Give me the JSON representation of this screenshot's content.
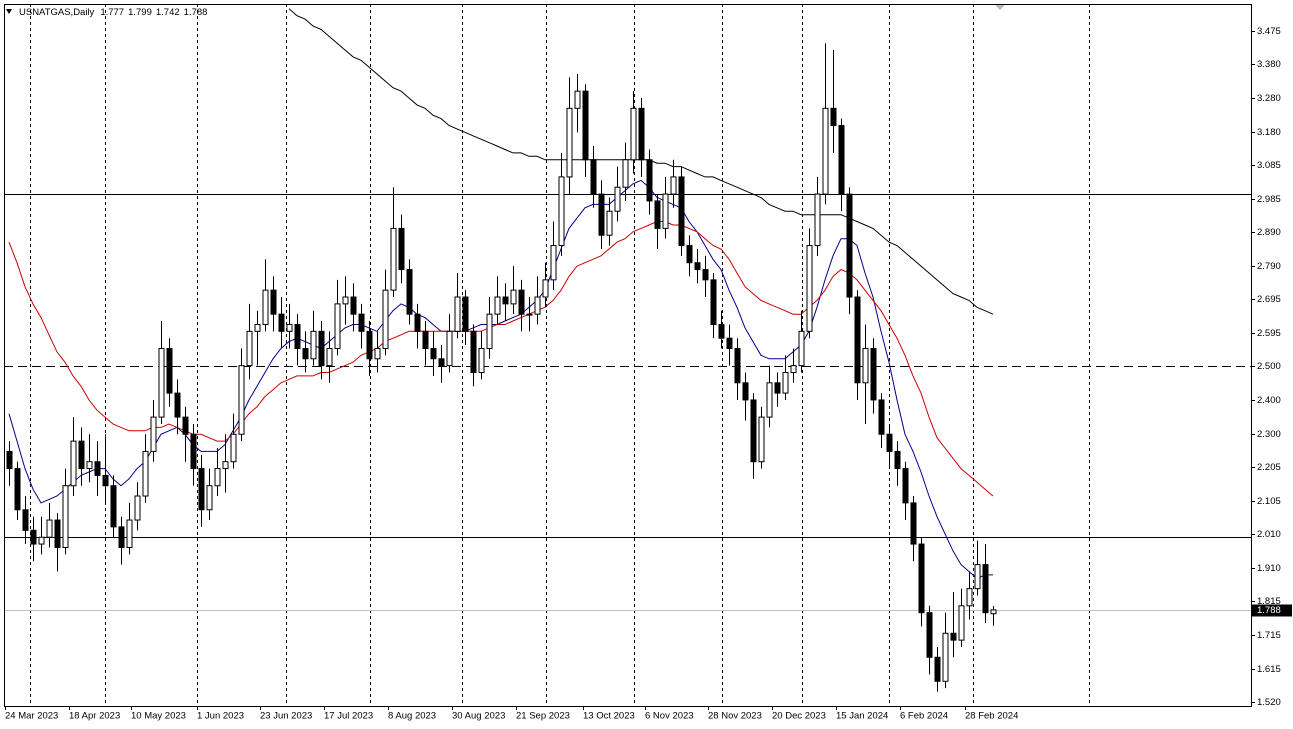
{
  "chart_data": {
    "type": "candlestick",
    "symbol": "USNATGAS,Daily",
    "x_labels": [
      "24 Mar 2023",
      "18 Apr 2023",
      "10 May 2023",
      "1 Jun 2023",
      "23 Jun 2023",
      "17 Jul 2023",
      "8 Aug 2023",
      "30 Aug 2023",
      "21 Sep 2023",
      "13 Oct 2023",
      "6 Nov 2023",
      "28 Nov 2023",
      "20 Dec 2023",
      "15 Jan 2024",
      "6 Feb 2024",
      "28 Feb 2024"
    ],
    "ylim": [
      1.508,
      3.554
    ],
    "yticks": [
      3.475,
      {
        "value": 3.38,
        "label": "3.380"
      },
      {
        "value": 3.28,
        "label": "3.280"
      },
      {
        "value": 3.18,
        "label": "3.180"
      },
      3.085,
      2.985,
      {
        "value": 2.89,
        "label": "2.890"
      },
      {
        "value": 2.79,
        "label": "2.790"
      },
      2.695,
      2.595,
      {
        "value": 2.5,
        "label": "2.500"
      },
      {
        "value": 2.4,
        "label": "2.400"
      },
      {
        "value": 2.3,
        "label": "2.300"
      },
      2.205,
      2.105,
      {
        "value": 2.01,
        "label": "2.010"
      },
      {
        "value": 1.91,
        "label": "1.910"
      },
      1.815,
      1.715,
      1.615,
      {
        "value": 1.52,
        "label": "1.520"
      }
    ],
    "up_color": "#ffffff",
    "down_color": "#000000",
    "hlines": [
      {
        "value": 3.0,
        "style": "solid"
      },
      {
        "value": 2.5,
        "style": "dashed"
      },
      {
        "value": 2.0,
        "style": "solid"
      }
    ],
    "ohlc": [
      [
        2.25,
        2.28,
        2.15,
        2.2
      ],
      [
        2.2,
        2.22,
        2.05,
        2.08
      ],
      [
        2.08,
        2.12,
        1.98,
        2.02
      ],
      [
        2.02,
        2.06,
        1.93,
        1.98
      ],
      [
        1.98,
        2.06,
        1.95,
        2.0
      ],
      [
        2.0,
        2.1,
        1.97,
        2.05
      ],
      [
        2.05,
        2.07,
        1.9,
        1.97
      ],
      [
        1.97,
        2.2,
        1.95,
        2.15
      ],
      [
        2.15,
        2.35,
        2.12,
        2.28
      ],
      [
        2.28,
        2.32,
        2.15,
        2.2
      ],
      [
        2.2,
        2.3,
        2.16,
        2.22
      ],
      [
        2.22,
        2.28,
        2.12,
        2.18
      ],
      [
        2.18,
        2.3,
        2.1,
        2.15
      ],
      [
        2.15,
        2.18,
        2.0,
        2.03
      ],
      [
        2.03,
        2.06,
        1.92,
        1.97
      ],
      [
        1.97,
        2.1,
        1.95,
        2.05
      ],
      [
        2.05,
        2.16,
        2.02,
        2.12
      ],
      [
        2.12,
        2.3,
        2.1,
        2.25
      ],
      [
        2.25,
        2.4,
        2.22,
        2.35
      ],
      [
        2.35,
        2.63,
        2.33,
        2.55
      ],
      [
        2.55,
        2.58,
        2.38,
        2.42
      ],
      [
        2.42,
        2.46,
        2.3,
        2.35
      ],
      [
        2.35,
        2.38,
        2.22,
        2.3
      ],
      [
        2.3,
        2.33,
        2.15,
        2.2
      ],
      [
        2.2,
        2.24,
        2.03,
        2.08
      ],
      [
        2.08,
        2.2,
        2.05,
        2.15
      ],
      [
        2.15,
        2.26,
        2.12,
        2.2
      ],
      [
        2.2,
        2.3,
        2.13,
        2.22
      ],
      [
        2.22,
        2.36,
        2.2,
        2.3
      ],
      [
        2.3,
        2.55,
        2.28,
        2.5
      ],
      [
        2.5,
        2.68,
        2.46,
        2.6
      ],
      [
        2.6,
        2.66,
        2.5,
        2.62
      ],
      [
        2.62,
        2.81,
        2.6,
        2.72
      ],
      [
        2.72,
        2.76,
        2.6,
        2.65
      ],
      [
        2.65,
        2.7,
        2.55,
        2.6
      ],
      [
        2.6,
        2.68,
        2.55,
        2.62
      ],
      [
        2.62,
        2.65,
        2.5,
        2.55
      ],
      [
        2.55,
        2.6,
        2.48,
        2.52
      ],
      [
        2.52,
        2.66,
        2.5,
        2.6
      ],
      [
        2.6,
        2.63,
        2.46,
        2.5
      ],
      [
        2.5,
        2.6,
        2.45,
        2.55
      ],
      [
        2.55,
        2.75,
        2.53,
        2.68
      ],
      [
        2.68,
        2.76,
        2.62,
        2.7
      ],
      [
        2.7,
        2.74,
        2.6,
        2.65
      ],
      [
        2.65,
        2.68,
        2.55,
        2.6
      ],
      [
        2.6,
        2.63,
        2.47,
        2.52
      ],
      [
        2.52,
        2.6,
        2.48,
        2.55
      ],
      [
        2.55,
        2.78,
        2.53,
        2.72
      ],
      [
        2.72,
        3.02,
        2.7,
        2.9
      ],
      [
        2.9,
        2.94,
        2.74,
        2.78
      ],
      [
        2.78,
        2.81,
        2.62,
        2.65
      ],
      [
        2.65,
        2.68,
        2.55,
        2.6
      ],
      [
        2.6,
        2.63,
        2.5,
        2.55
      ],
      [
        2.55,
        2.6,
        2.47,
        2.52
      ],
      [
        2.52,
        2.56,
        2.45,
        2.5
      ],
      [
        2.5,
        2.65,
        2.48,
        2.6
      ],
      [
        2.6,
        2.77,
        2.58,
        2.7
      ],
      [
        2.7,
        2.72,
        2.56,
        2.6
      ],
      [
        2.6,
        2.62,
        2.44,
        2.48
      ],
      [
        2.48,
        2.6,
        2.46,
        2.55
      ],
      [
        2.55,
        2.7,
        2.52,
        2.65
      ],
      [
        2.65,
        2.76,
        2.62,
        2.7
      ],
      [
        2.7,
        2.74,
        2.63,
        2.68
      ],
      [
        2.68,
        2.79,
        2.65,
        2.72
      ],
      [
        2.72,
        2.75,
        2.6,
        2.65
      ],
      [
        2.65,
        2.7,
        2.6,
        2.65
      ],
      [
        2.65,
        2.76,
        2.62,
        2.7
      ],
      [
        2.7,
        2.8,
        2.67,
        2.75
      ],
      [
        2.75,
        2.92,
        2.72,
        2.85
      ],
      [
        2.85,
        3.12,
        2.82,
        3.05
      ],
      [
        3.05,
        3.34,
        3.0,
        3.25
      ],
      [
        3.25,
        3.35,
        3.18,
        3.3
      ],
      [
        3.3,
        3.32,
        3.05,
        3.1
      ],
      [
        3.1,
        3.14,
        2.96,
        3.0
      ],
      [
        3.0,
        3.04,
        2.84,
        2.88
      ],
      [
        2.88,
        2.99,
        2.85,
        2.95
      ],
      [
        2.95,
        3.08,
        2.92,
        3.02
      ],
      [
        3.02,
        3.15,
        2.98,
        3.1
      ],
      [
        3.1,
        3.3,
        3.06,
        3.25
      ],
      [
        3.25,
        3.28,
        3.05,
        3.1
      ],
      [
        3.1,
        3.13,
        2.94,
        2.98
      ],
      [
        2.98,
        3.0,
        2.84,
        2.9
      ],
      [
        2.9,
        3.05,
        2.87,
        3.0
      ],
      [
        3.0,
        3.1,
        2.96,
        3.05
      ],
      [
        3.05,
        3.08,
        2.82,
        2.85
      ],
      [
        2.85,
        2.88,
        2.76,
        2.8
      ],
      [
        2.8,
        2.84,
        2.74,
        2.78
      ],
      [
        2.78,
        2.82,
        2.7,
        2.75
      ],
      [
        2.75,
        2.77,
        2.58,
        2.62
      ],
      [
        2.62,
        2.66,
        2.55,
        2.58
      ],
      [
        2.58,
        2.62,
        2.5,
        2.55
      ],
      [
        2.55,
        2.58,
        2.4,
        2.45
      ],
      [
        2.45,
        2.48,
        2.34,
        2.4
      ],
      [
        2.4,
        2.42,
        2.17,
        2.22
      ],
      [
        2.22,
        2.38,
        2.2,
        2.35
      ],
      [
        2.35,
        2.5,
        2.32,
        2.45
      ],
      [
        2.45,
        2.48,
        2.38,
        2.42
      ],
      [
        2.42,
        2.53,
        2.4,
        2.48
      ],
      [
        2.48,
        2.55,
        2.45,
        2.5
      ],
      [
        2.5,
        2.66,
        2.48,
        2.6
      ],
      [
        2.6,
        2.9,
        2.58,
        2.85
      ],
      [
        2.85,
        3.05,
        2.82,
        3.0
      ],
      [
        3.0,
        3.44,
        2.97,
        3.25
      ],
      [
        3.25,
        3.42,
        3.12,
        3.2
      ],
      [
        3.2,
        3.22,
        2.95,
        3.0
      ],
      [
        3.0,
        3.02,
        2.65,
        2.7
      ],
      [
        2.7,
        2.72,
        2.4,
        2.45
      ],
      [
        2.45,
        2.62,
        2.33,
        2.55
      ],
      [
        2.55,
        2.58,
        2.36,
        2.4
      ],
      [
        2.4,
        2.42,
        2.26,
        2.3
      ],
      [
        2.3,
        2.33,
        2.2,
        2.25
      ],
      [
        2.25,
        2.28,
        2.15,
        2.2
      ],
      [
        2.2,
        2.22,
        2.05,
        2.1
      ],
      [
        2.1,
        2.12,
        1.93,
        1.98
      ],
      [
        1.98,
        2.0,
        1.74,
        1.78
      ],
      [
        1.78,
        1.8,
        1.6,
        1.65
      ],
      [
        1.65,
        1.68,
        1.55,
        1.58
      ],
      [
        1.58,
        1.78,
        1.56,
        1.72
      ],
      [
        1.72,
        1.84,
        1.65,
        1.7
      ],
      [
        1.7,
        1.85,
        1.68,
        1.8
      ],
      [
        1.8,
        1.9,
        1.76,
        1.85
      ],
      [
        1.85,
        1.99,
        1.83,
        1.92
      ],
      [
        1.92,
        1.98,
        1.75,
        1.78
      ],
      [
        1.777,
        1.799,
        1.742,
        1.788
      ]
    ],
    "series": [
      {
        "color": "#00008b",
        "values": [
          2.36,
          2.28,
          2.2,
          2.14,
          2.1,
          2.11,
          2.12,
          2.14,
          2.16,
          2.18,
          2.19,
          2.2,
          2.2,
          2.17,
          2.15,
          2.17,
          2.2,
          2.22,
          2.26,
          2.3,
          2.31,
          2.32,
          2.3,
          2.27,
          2.25,
          2.25,
          2.25,
          2.27,
          2.31,
          2.35,
          2.4,
          2.44,
          2.48,
          2.52,
          2.55,
          2.57,
          2.58,
          2.57,
          2.56,
          2.55,
          2.57,
          2.59,
          2.61,
          2.62,
          2.62,
          2.61,
          2.6,
          2.63,
          2.66,
          2.68,
          2.67,
          2.65,
          2.64,
          2.62,
          2.6,
          2.6,
          2.6,
          2.6,
          2.61,
          2.62,
          2.62,
          2.62,
          2.63,
          2.64,
          2.65,
          2.67,
          2.69,
          2.72,
          2.78,
          2.84,
          2.9,
          2.93,
          2.96,
          2.97,
          2.97,
          2.97,
          2.99,
          3.01,
          3.03,
          3.04,
          3.02,
          2.99,
          2.98,
          2.97,
          2.96,
          2.92,
          2.89,
          2.85,
          2.81,
          2.78,
          2.72,
          2.67,
          2.61,
          2.57,
          2.53,
          2.52,
          2.52,
          2.52,
          2.54,
          2.56,
          2.6,
          2.67,
          2.75,
          2.82,
          2.87,
          2.87,
          2.85,
          2.77,
          2.7,
          2.6,
          2.51,
          2.4,
          2.3,
          2.25,
          2.19,
          2.12,
          2.06,
          2.01,
          1.96,
          1.92,
          1.9,
          1.88,
          1.89,
          1.89
        ]
      },
      {
        "color": "#cc0000",
        "values": [
          2.86,
          2.8,
          2.73,
          2.68,
          2.64,
          2.59,
          2.54,
          2.51,
          2.47,
          2.44,
          2.4,
          2.37,
          2.35,
          2.33,
          2.32,
          2.31,
          2.31,
          2.31,
          2.32,
          2.32,
          2.33,
          2.32,
          2.31,
          2.3,
          2.3,
          2.29,
          2.28,
          2.28,
          2.3,
          2.33,
          2.36,
          2.38,
          2.41,
          2.43,
          2.45,
          2.46,
          2.47,
          2.47,
          2.47,
          2.48,
          2.48,
          2.49,
          2.5,
          2.51,
          2.53,
          2.54,
          2.55,
          2.57,
          2.58,
          2.59,
          2.6,
          2.6,
          2.6,
          2.6,
          2.6,
          2.6,
          2.6,
          2.6,
          2.6,
          2.6,
          2.61,
          2.62,
          2.62,
          2.63,
          2.64,
          2.65,
          2.66,
          2.67,
          2.69,
          2.72,
          2.76,
          2.79,
          2.8,
          2.81,
          2.82,
          2.84,
          2.86,
          2.87,
          2.89,
          2.9,
          2.91,
          2.92,
          2.92,
          2.91,
          2.91,
          2.9,
          2.89,
          2.87,
          2.85,
          2.84,
          2.81,
          2.77,
          2.73,
          2.71,
          2.69,
          2.68,
          2.67,
          2.66,
          2.65,
          2.65,
          2.67,
          2.69,
          2.72,
          2.76,
          2.78,
          2.77,
          2.75,
          2.72,
          2.69,
          2.66,
          2.62,
          2.58,
          2.53,
          2.47,
          2.42,
          2.35,
          2.29,
          2.26,
          2.23,
          2.2,
          2.18,
          2.16,
          2.14,
          2.12
        ]
      },
      {
        "color": "#000000",
        "values": [
          null,
          null,
          null,
          null,
          null,
          null,
          null,
          null,
          null,
          null,
          null,
          null,
          null,
          null,
          null,
          null,
          null,
          null,
          null,
          null,
          null,
          null,
          null,
          null,
          null,
          null,
          null,
          null,
          null,
          null,
          null,
          null,
          null,
          null,
          null,
          3.54,
          3.52,
          3.51,
          3.49,
          3.48,
          3.46,
          3.44,
          3.42,
          3.4,
          3.39,
          3.37,
          3.35,
          3.33,
          3.31,
          3.3,
          3.28,
          3.26,
          3.25,
          3.23,
          3.22,
          3.2,
          3.19,
          3.18,
          3.17,
          3.16,
          3.15,
          3.14,
          3.13,
          3.12,
          3.12,
          3.11,
          3.11,
          3.1,
          3.1,
          3.1,
          3.1,
          3.1,
          3.1,
          3.1,
          3.1,
          3.1,
          3.1,
          3.1,
          3.1,
          3.1,
          3.1,
          3.09,
          3.09,
          3.08,
          3.08,
          3.07,
          3.06,
          3.05,
          3.05,
          3.04,
          3.03,
          3.02,
          3.01,
          3.0,
          2.99,
          2.97,
          2.96,
          2.95,
          2.95,
          2.94,
          2.94,
          2.94,
          2.94,
          2.94,
          2.94,
          2.93,
          2.92,
          2.91,
          2.9,
          2.88,
          2.86,
          2.85,
          2.83,
          2.81,
          2.79,
          2.77,
          2.75,
          2.73,
          2.71,
          2.7,
          2.69,
          2.67,
          2.66,
          2.65
        ]
      }
    ]
  }
}
